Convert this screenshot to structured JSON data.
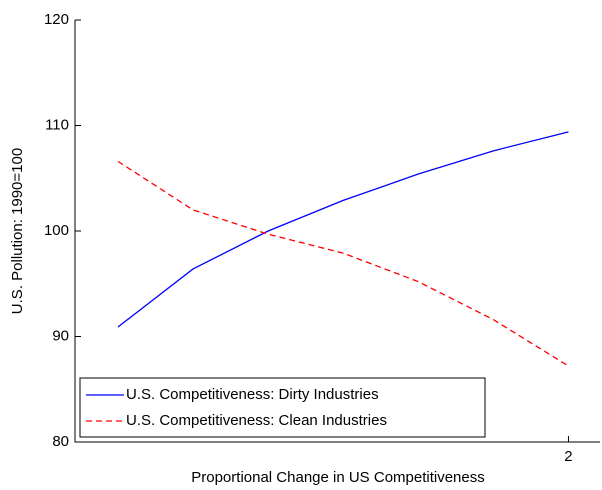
{
  "chart_data": {
    "type": "line",
    "x_label": "Proportional Change in US Competitiveness",
    "y_label": "U.S. Pollution: 1990=100",
    "x": [
      0.5,
      0.75,
      1.0,
      1.25,
      1.5,
      1.75,
      2.0
    ],
    "series": [
      {
        "name": "U.S. Competitiveness: Dirty Industries",
        "color": "#0000ff",
        "dash": "solid",
        "values": [
          90.9,
          96.4,
          100.0,
          102.9,
          105.4,
          107.6,
          109.4
        ]
      },
      {
        "name": "U.S. Competitiveness: Clean Industries",
        "color": "#ff0000",
        "dash": "dashed",
        "values": [
          106.6,
          102.0,
          99.7,
          97.9,
          95.2,
          91.6,
          87.2
        ]
      }
    ],
    "xlim": [
      0.357,
      2.105
    ],
    "xticks": [
      2
    ],
    "ylim": [
      80,
      120
    ],
    "yticks": [
      80,
      90,
      100,
      110,
      120
    ],
    "legend": "lower left",
    "grid": false
  }
}
